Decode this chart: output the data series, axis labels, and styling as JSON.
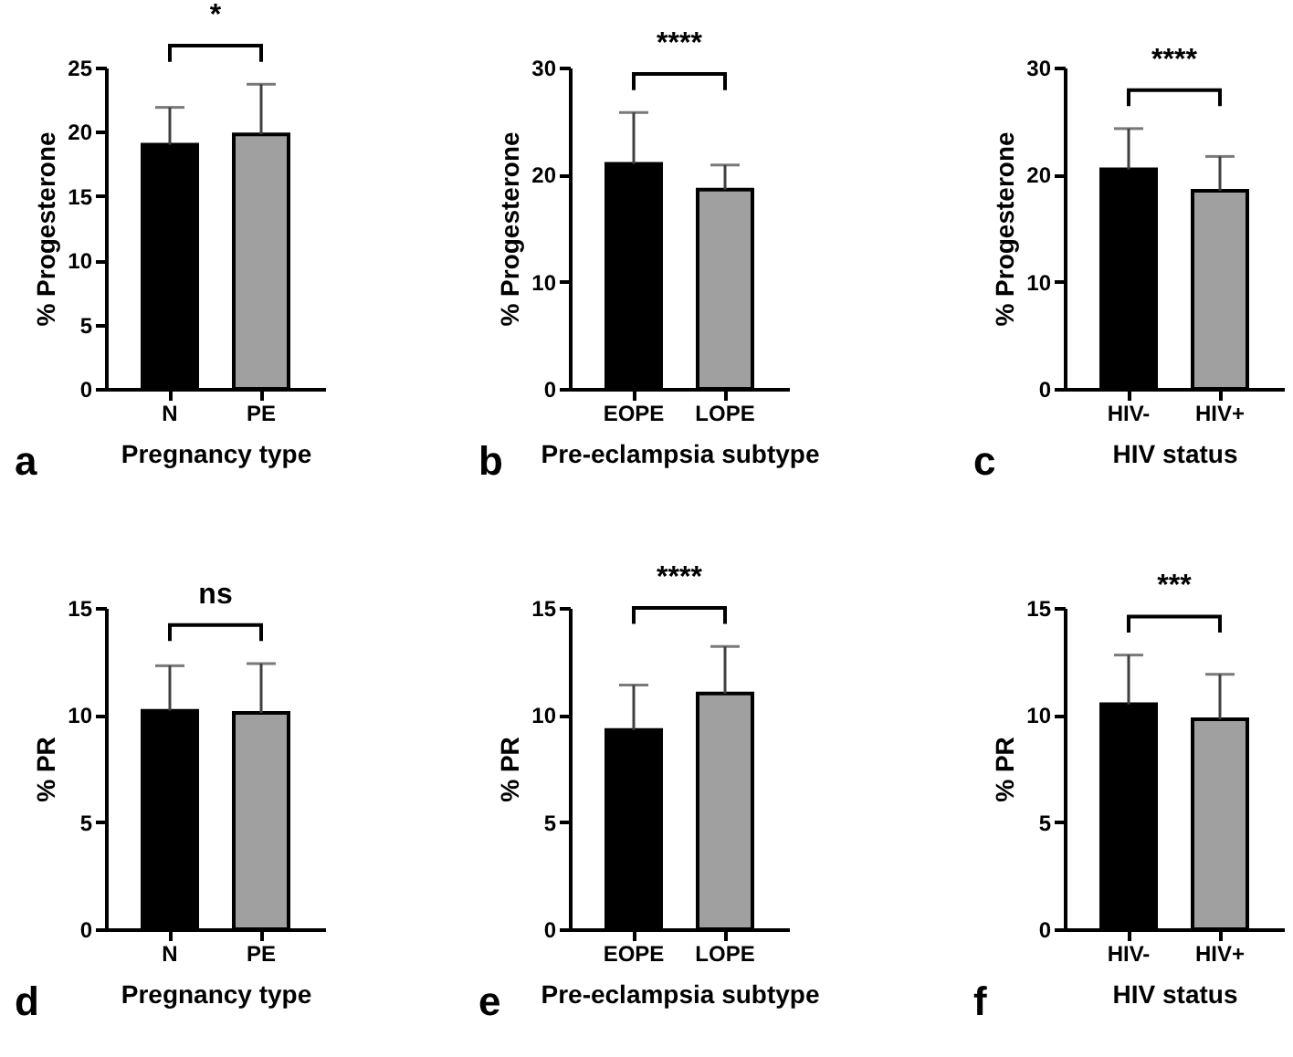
{
  "chart_data": [
    {
      "type": "bar",
      "categories": [
        "N",
        "PE"
      ],
      "values": [
        19.0,
        19.8
      ],
      "colors": [
        "#000000",
        "#a0a0a0"
      ],
      "errors": [
        [
          19.0,
          21.9
        ],
        [
          19.8,
          23.7
        ]
      ],
      "ylim": [
        0,
        25
      ],
      "yticks": [
        0,
        5,
        10,
        15,
        20,
        25
      ],
      "xlabel": "Pregnancy type",
      "ylabel": "% Progesterone",
      "annotations": [
        "*",
        "a"
      ]
    },
    {
      "type": "bar",
      "categories": [
        "EOPE",
        "LOPE"
      ],
      "values": [
        21.0,
        18.6
      ],
      "colors": [
        "#000000",
        "#a0a0a0"
      ],
      "errors": [
        [
          21.0,
          25.8
        ],
        [
          18.6,
          20.9
        ]
      ],
      "ylim": [
        0,
        30
      ],
      "yticks": [
        0,
        10,
        20,
        30
      ],
      "xlabel": "Pre-eclampsia subtype",
      "ylabel": "% Progesterone",
      "annotations": [
        "****",
        "b"
      ]
    },
    {
      "type": "bar",
      "categories": [
        "HIV-",
        "HIV+"
      ],
      "values": [
        20.5,
        18.5
      ],
      "colors": [
        "#000000",
        "#a0a0a0"
      ],
      "errors": [
        [
          20.5,
          24.3
        ],
        [
          18.5,
          21.7
        ]
      ],
      "ylim": [
        0,
        30
      ],
      "yticks": [
        0,
        10,
        20,
        30
      ],
      "xlabel": "HIV status",
      "ylabel": "% Progesterone",
      "annotations": [
        "****",
        "c"
      ]
    },
    {
      "type": "bar",
      "categories": [
        "N",
        "PE"
      ],
      "values": [
        10.2,
        10.1
      ],
      "colors": [
        "#000000",
        "#a0a0a0"
      ],
      "errors": [
        [
          10.2,
          12.3
        ],
        [
          10.1,
          12.4
        ]
      ],
      "ylim": [
        0,
        15
      ],
      "yticks": [
        0,
        5,
        10,
        15
      ],
      "xlabel": "Pregnancy type",
      "ylabel": "% PR",
      "annotations": [
        "ns",
        "d"
      ]
    },
    {
      "type": "bar",
      "categories": [
        "EOPE",
        "LOPE"
      ],
      "values": [
        9.3,
        11.0
      ],
      "colors": [
        "#000000",
        "#a0a0a0"
      ],
      "errors": [
        [
          9.3,
          11.4
        ],
        [
          11.0,
          13.2
        ]
      ],
      "ylim": [
        0,
        15
      ],
      "yticks": [
        0,
        5,
        10,
        15
      ],
      "xlabel": "Pre-eclampsia subtype",
      "ylabel": "% PR",
      "annotations": [
        "****",
        "e"
      ]
    },
    {
      "type": "bar",
      "categories": [
        "HIV-",
        "HIV+"
      ],
      "values": [
        10.5,
        9.8
      ],
      "colors": [
        "#000000",
        "#a0a0a0"
      ],
      "errors": [
        [
          10.5,
          12.8
        ],
        [
          9.8,
          11.9
        ]
      ],
      "ylim": [
        0,
        15
      ],
      "yticks": [
        0,
        5,
        10,
        15
      ],
      "xlabel": "HIV status",
      "ylabel": "% PR",
      "annotations": [
        "***",
        "f"
      ]
    }
  ]
}
